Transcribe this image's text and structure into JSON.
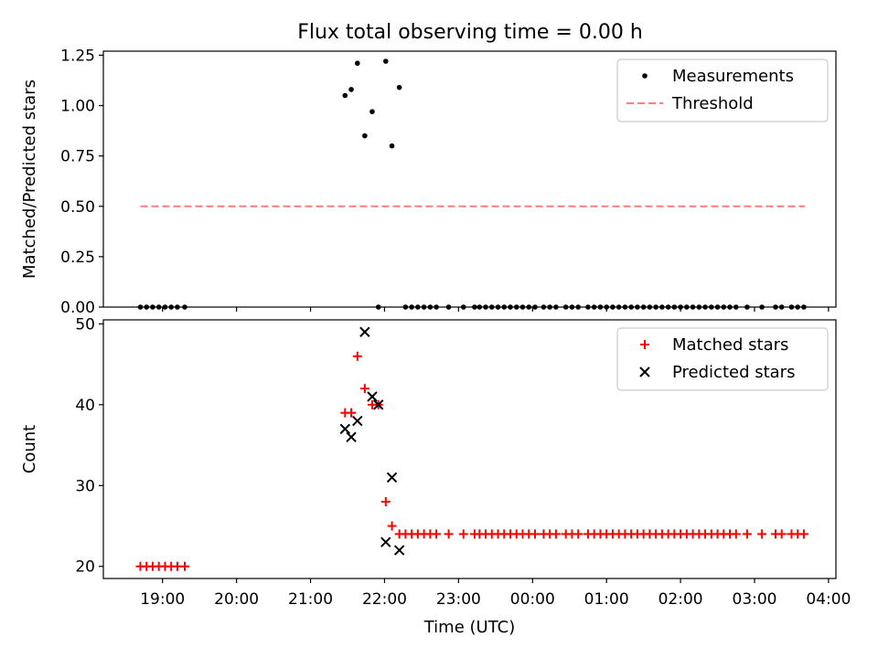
{
  "title": "Flux total observing time = 0.00 h",
  "chart_data": [
    {
      "type": "scatter",
      "panel": "top",
      "title": "Flux total observing time = 0.00 h",
      "xlabel": "",
      "ylabel": "Matched/Predicted stars",
      "xlim": [
        "18:12",
        "04:06"
      ],
      "ylim": [
        0,
        1.27
      ],
      "yticks": [
        0.0,
        0.25,
        0.5,
        0.75,
        1.0,
        1.25
      ],
      "ytick_labels": [
        "0.00",
        "0.25",
        "0.50",
        "0.75",
        "1.00",
        "1.25"
      ],
      "xticks": [
        "19:00",
        "20:00",
        "21:00",
        "22:00",
        "23:00",
        "00:00",
        "01:00",
        "02:00",
        "03:00",
        "04:00"
      ],
      "legend_position": "top-right",
      "series": [
        {
          "name": "Measurements",
          "kind": "scatter",
          "marker": "dot",
          "color": "#000000",
          "points": [
            [
              "18:42",
              0
            ],
            [
              "18:47",
              0
            ],
            [
              "18:52",
              0
            ],
            [
              "18:57",
              0
            ],
            [
              "19:02",
              0
            ],
            [
              "19:07",
              0
            ],
            [
              "19:12",
              0
            ],
            [
              "19:18",
              0
            ],
            [
              "21:28",
              1.05
            ],
            [
              "21:33",
              1.08
            ],
            [
              "21:38",
              1.21
            ],
            [
              "21:44",
              0.85
            ],
            [
              "21:50",
              0.97
            ],
            [
              "21:55",
              0
            ],
            [
              "22:01",
              1.22
            ],
            [
              "22:06",
              0.8
            ],
            [
              "22:12",
              1.09
            ],
            [
              "22:17",
              0
            ],
            [
              "22:22",
              0
            ],
            [
              "22:27",
              0
            ],
            [
              "22:32",
              0
            ],
            [
              "22:37",
              0
            ],
            [
              "22:42",
              0
            ],
            [
              "22:52",
              0
            ],
            [
              "23:04",
              0
            ],
            [
              "23:13",
              0
            ],
            [
              "23:17",
              0
            ],
            [
              "23:22",
              0
            ],
            [
              "23:27",
              0
            ],
            [
              "23:32",
              0
            ],
            [
              "23:37",
              0
            ],
            [
              "23:42",
              0
            ],
            [
              "23:47",
              0
            ],
            [
              "23:52",
              0
            ],
            [
              "23:57",
              0
            ],
            [
              "00:02",
              0
            ],
            [
              "00:09",
              0
            ],
            [
              "00:14",
              0
            ],
            [
              "00:19",
              0
            ],
            [
              "00:27",
              0
            ],
            [
              "00:32",
              0
            ],
            [
              "00:37",
              0
            ],
            [
              "00:45",
              0
            ],
            [
              "00:50",
              0
            ],
            [
              "00:55",
              0
            ],
            [
              "01:00",
              0
            ],
            [
              "01:05",
              0
            ],
            [
              "01:10",
              0
            ],
            [
              "01:15",
              0
            ],
            [
              "01:20",
              0
            ],
            [
              "01:25",
              0
            ],
            [
              "01:30",
              0
            ],
            [
              "01:35",
              0
            ],
            [
              "01:40",
              0
            ],
            [
              "01:45",
              0
            ],
            [
              "01:50",
              0
            ],
            [
              "01:55",
              0
            ],
            [
              "02:00",
              0
            ],
            [
              "02:05",
              0
            ],
            [
              "02:10",
              0
            ],
            [
              "02:15",
              0
            ],
            [
              "02:20",
              0
            ],
            [
              "02:25",
              0
            ],
            [
              "02:30",
              0
            ],
            [
              "02:35",
              0
            ],
            [
              "02:40",
              0
            ],
            [
              "02:45",
              0
            ],
            [
              "02:54",
              0
            ],
            [
              "03:06",
              0
            ],
            [
              "03:17",
              0
            ],
            [
              "03:22",
              0
            ],
            [
              "03:30",
              0
            ],
            [
              "03:35",
              0
            ],
            [
              "03:40",
              0
            ]
          ]
        },
        {
          "name": "Threshold",
          "kind": "line",
          "dash": true,
          "color": "#ff7f7f",
          "points": [
            [
              "18:42",
              0.5
            ],
            [
              "03:41",
              0.5
            ]
          ]
        }
      ]
    },
    {
      "type": "scatter",
      "panel": "bottom",
      "title": "",
      "xlabel": "Time (UTC)",
      "ylabel": "Count",
      "xlim": [
        "18:12",
        "04:06"
      ],
      "ylim": [
        18.5,
        50.5
      ],
      "yticks": [
        20,
        30,
        40,
        50
      ],
      "ytick_labels": [
        "20",
        "30",
        "40",
        "50"
      ],
      "xticks": [
        "19:00",
        "20:00",
        "21:00",
        "22:00",
        "23:00",
        "00:00",
        "01:00",
        "02:00",
        "03:00",
        "04:00"
      ],
      "xtick_labels": [
        "19:00",
        "20:00",
        "21:00",
        "22:00",
        "23:00",
        "00:00",
        "01:00",
        "02:00",
        "03:00",
        "04:00"
      ],
      "legend_position": "top-right",
      "series": [
        {
          "name": "Matched stars",
          "kind": "scatter",
          "marker": "plus",
          "color": "#ff0000",
          "points": [
            [
              "18:42",
              20
            ],
            [
              "18:47",
              20
            ],
            [
              "18:52",
              20
            ],
            [
              "18:57",
              20
            ],
            [
              "19:02",
              20
            ],
            [
              "19:07",
              20
            ],
            [
              "19:12",
              20
            ],
            [
              "19:18",
              20
            ],
            [
              "21:28",
              39
            ],
            [
              "21:33",
              39
            ],
            [
              "21:38",
              46
            ],
            [
              "21:44",
              42
            ],
            [
              "21:50",
              40
            ],
            [
              "21:55",
              40
            ],
            [
              "22:01",
              28
            ],
            [
              "22:06",
              25
            ],
            [
              "22:12",
              24
            ],
            [
              "22:17",
              24
            ],
            [
              "22:22",
              24
            ],
            [
              "22:27",
              24
            ],
            [
              "22:32",
              24
            ],
            [
              "22:37",
              24
            ],
            [
              "22:42",
              24
            ],
            [
              "22:52",
              24
            ],
            [
              "23:04",
              24
            ],
            [
              "23:13",
              24
            ],
            [
              "23:17",
              24
            ],
            [
              "23:22",
              24
            ],
            [
              "23:27",
              24
            ],
            [
              "23:32",
              24
            ],
            [
              "23:37",
              24
            ],
            [
              "23:42",
              24
            ],
            [
              "23:47",
              24
            ],
            [
              "23:52",
              24
            ],
            [
              "23:57",
              24
            ],
            [
              "00:02",
              24
            ],
            [
              "00:09",
              24
            ],
            [
              "00:14",
              24
            ],
            [
              "00:19",
              24
            ],
            [
              "00:27",
              24
            ],
            [
              "00:32",
              24
            ],
            [
              "00:37",
              24
            ],
            [
              "00:45",
              24
            ],
            [
              "00:50",
              24
            ],
            [
              "00:55",
              24
            ],
            [
              "01:00",
              24
            ],
            [
              "01:05",
              24
            ],
            [
              "01:10",
              24
            ],
            [
              "01:15",
              24
            ],
            [
              "01:20",
              24
            ],
            [
              "01:25",
              24
            ],
            [
              "01:30",
              24
            ],
            [
              "01:35",
              24
            ],
            [
              "01:40",
              24
            ],
            [
              "01:45",
              24
            ],
            [
              "01:50",
              24
            ],
            [
              "01:55",
              24
            ],
            [
              "02:00",
              24
            ],
            [
              "02:05",
              24
            ],
            [
              "02:10",
              24
            ],
            [
              "02:15",
              24
            ],
            [
              "02:20",
              24
            ],
            [
              "02:25",
              24
            ],
            [
              "02:30",
              24
            ],
            [
              "02:35",
              24
            ],
            [
              "02:40",
              24
            ],
            [
              "02:45",
              24
            ],
            [
              "02:54",
              24
            ],
            [
              "03:06",
              24
            ],
            [
              "03:17",
              24
            ],
            [
              "03:22",
              24
            ],
            [
              "03:30",
              24
            ],
            [
              "03:35",
              24
            ],
            [
              "03:40",
              24
            ]
          ]
        },
        {
          "name": "Predicted stars",
          "kind": "scatter",
          "marker": "x",
          "color": "#000000",
          "points": [
            [
              "21:28",
              37
            ],
            [
              "21:33",
              36
            ],
            [
              "21:38",
              38
            ],
            [
              "21:44",
              49
            ],
            [
              "21:50",
              41
            ],
            [
              "21:55",
              40
            ],
            [
              "22:01",
              23
            ],
            [
              "22:06",
              31
            ],
            [
              "22:12",
              22
            ]
          ]
        }
      ]
    }
  ]
}
